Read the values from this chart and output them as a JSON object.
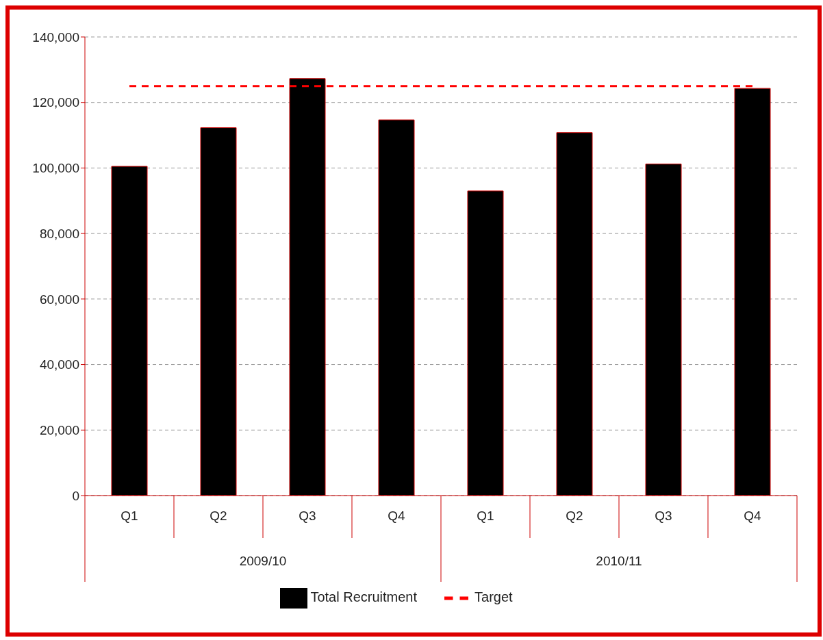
{
  "chart_data": {
    "type": "bar",
    "categories": [
      "Q1",
      "Q2",
      "Q3",
      "Q4",
      "Q1",
      "Q2",
      "Q3",
      "Q4"
    ],
    "series": [
      {
        "name": "Total Recruitment",
        "color": "#000000",
        "values": [
          100500,
          112300,
          127300,
          114700,
          93000,
          110800,
          101200,
          124300
        ]
      },
      {
        "name": "Target",
        "type": "line",
        "color": "#ff0000",
        "line_style": "dashed",
        "marker": "none",
        "values": [
          125000,
          125000,
          125000,
          125000,
          125000,
          125000,
          125000,
          125000
        ]
      }
    ],
    "annotations": [
      "2009/10",
      "2010/11"
    ],
    "ylim": [
      0,
      140000
    ],
    "yticks": [
      0,
      {
        "value": 20000,
        "label": "20,000"
      },
      {
        "value": 40000,
        "label": "40,000"
      },
      {
        "value": 60000,
        "label": "60,000"
      },
      {
        "value": 80000,
        "label": "80,000"
      },
      {
        "value": 100000,
        "label": "100,000"
      },
      {
        "value": 120000,
        "label": "120,000"
      },
      {
        "value": 140000,
        "label": "140,000"
      }
    ],
    "grid": "y",
    "legend": "bottom"
  }
}
